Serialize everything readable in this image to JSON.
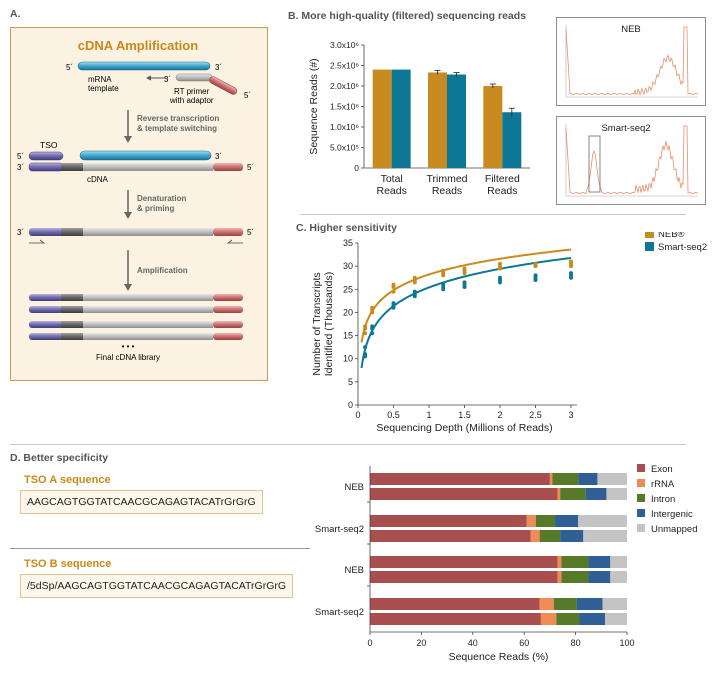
{
  "colors": {
    "neb": "#c98a1f",
    "smart": "#0d7896",
    "exon": "#a84e4e",
    "rrna": "#ef8c56",
    "intron": "#577a2a",
    "intergenic": "#2f5f94",
    "unmapped": "#c4c4c4",
    "trace": "#e8906a"
  },
  "panelA": {
    "label": "A.",
    "title": "cDNA Amplification",
    "mrna_label": "mRNA\ntemplate",
    "rt_label": "RT primer\nwith adaptor",
    "step1": "Reverse transcription\n& template switching",
    "tso": "TSO",
    "cdna": "cDNA",
    "step2": "Denaturation\n& priming",
    "step3": "Amplification",
    "dots": "• • •",
    "library": "Final cDNA library",
    "p5": "5´",
    "p3": "3´"
  },
  "panelB": {
    "label": "B. More high-quality (filtered) sequencing reads",
    "thumb1": "NEB",
    "thumb2": "Smart-seq2"
  },
  "panelC": {
    "label": "C. Higher sensitivity",
    "legend_neb": "NEB®",
    "legend_smart": "Smart-seq2"
  },
  "panelD": {
    "label": "D. Better specificity",
    "tsoA_title": "TSO A sequence",
    "tsoA_seq": "AAGCAGTGGTATCAACGCAGAGTACATrGrGrG",
    "tsoB_title": "TSO B sequence",
    "tsoB_seq": "/5dSp/AAGCAGTGGTATCAACGCAGAGTACATrGrGrG"
  },
  "chart_data": [
    {
      "type": "bar",
      "title": "",
      "ylabel": "Sequence Reads (#)",
      "categories": [
        "Total\nReads",
        "Trimmed\nReads",
        "Filtered\nReads"
      ],
      "series": [
        {
          "name": "NEB",
          "values": [
            2400000,
            2330000,
            2000000
          ]
        },
        {
          "name": "Smart-seq2",
          "values": [
            2400000,
            2280000,
            1360000
          ]
        }
      ],
      "ylim": [
        0,
        3000000
      ],
      "yticks": [
        "0",
        "5.0x10⁵",
        "1.0x10⁶",
        "1.5x10⁶",
        "2.0x10⁶",
        "2.5x10⁶",
        "3.0x10⁶"
      ]
    },
    {
      "type": "scatter",
      "title": "",
      "xlabel": "Sequencing Depth (Millions of Reads)",
      "ylabel": "Number of Transcripts Identified (Thousands)",
      "xlim": [
        0,
        3
      ],
      "ylim": [
        0,
        35
      ],
      "xticks": [
        "0",
        "0.5",
        "1",
        "1.5",
        "2",
        "2.5",
        "3"
      ],
      "yticks": [
        "0",
        "5",
        "10",
        "15",
        "20",
        "25",
        "30",
        "35"
      ],
      "series": [
        {
          "name": "NEB®",
          "x": [
            0.1,
            0.1,
            0.1,
            0.2,
            0.2,
            0.2,
            0.5,
            0.5,
            0.5,
            0.8,
            0.8,
            0.8,
            1.2,
            1.2,
            1.2,
            1.5,
            1.5,
            1.5,
            2.0,
            2.0,
            2.0,
            2.5,
            2.5,
            2.5,
            3.0,
            3.0,
            3.0
          ],
          "y": [
            16.5,
            15.5,
            17.0,
            20.5,
            21.0,
            20.0,
            25.5,
            24.5,
            26.0,
            27.5,
            26.5,
            27.0,
            29.0,
            28.0,
            28.5,
            29.5,
            28.5,
            29.0,
            30.5,
            30.0,
            29.5,
            30.5,
            30.0,
            30.2,
            31.0,
            30.5,
            30.0
          ]
        },
        {
          "name": "Smart-seq2",
          "x": [
            0.1,
            0.1,
            0.1,
            0.2,
            0.2,
            0.2,
            0.5,
            0.5,
            0.5,
            0.8,
            0.8,
            0.8,
            1.2,
            1.2,
            1.2,
            1.5,
            1.5,
            1.5,
            2.0,
            2.0,
            2.0,
            2.5,
            2.5,
            2.5,
            3.0,
            3.0,
            3.0
          ],
          "y": [
            11.0,
            12.5,
            10.5,
            15.5,
            16.5,
            17.0,
            21.0,
            22.0,
            21.5,
            23.5,
            24.0,
            24.5,
            25.0,
            26.0,
            25.5,
            26.0,
            26.5,
            25.5,
            27.5,
            26.5,
            27.0,
            27.5,
            28.0,
            27.0,
            28.5,
            28.0,
            27.5
          ]
        }
      ],
      "fit_curves": [
        {
          "name": "NEB®",
          "a": 28.2,
          "b": 4.9
        },
        {
          "name": "Smart-seq2",
          "a": 25.4,
          "b": 5.8
        }
      ]
    },
    {
      "type": "bar",
      "orientation": "horizontal-stacked",
      "xlabel": "Sequence Reads (%)",
      "xlim": [
        0,
        100
      ],
      "xticks": [
        "0",
        "20",
        "40",
        "60",
        "80",
        "100"
      ],
      "groups": [
        "NEB",
        "Smart-seq2",
        "NEB",
        "Smart-seq2"
      ],
      "components": [
        "Exon",
        "rRNA",
        "Intron",
        "Intergenic",
        "Unmapped"
      ],
      "rows": [
        {
          "group": "NEB",
          "values": [
            70,
            1,
            10,
            7.5,
            11.5
          ]
        },
        {
          "group": "NEB",
          "values": [
            73,
            1,
            10,
            8,
            8
          ]
        },
        {
          "group": "Smart-seq2",
          "values": [
            61,
            3.5,
            7.5,
            9,
            19
          ]
        },
        {
          "group": "Smart-seq2",
          "values": [
            62.5,
            3.5,
            8,
            9,
            17
          ]
        },
        {
          "group": "NEB",
          "values": [
            73,
            1.5,
            10.5,
            8.5,
            6.5
          ]
        },
        {
          "group": "NEB",
          "values": [
            73,
            1.5,
            10.5,
            8.5,
            6.5
          ]
        },
        {
          "group": "Smart-seq2",
          "values": [
            66,
            5.5,
            9,
            10,
            9.5
          ]
        },
        {
          "group": "Smart-seq2",
          "values": [
            66.5,
            6,
            9,
            10,
            8.5
          ]
        }
      ]
    }
  ]
}
